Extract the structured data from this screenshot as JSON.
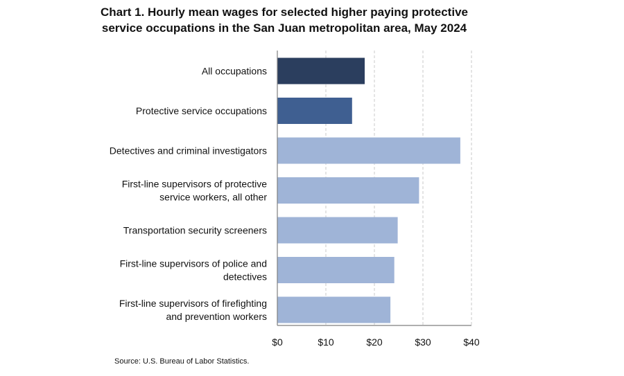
{
  "chart_data": {
    "type": "bar",
    "orientation": "horizontal",
    "title_lines": [
      "Chart 1. Hourly mean wages for selected higher paying protective",
      "service occupations in the San Juan metropolitan area, May 2024"
    ],
    "categories": [
      [
        "All occupations"
      ],
      [
        "Protective service occupations"
      ],
      [
        "Detectives and criminal investigators"
      ],
      [
        "First-line supervisors of protective",
        "service workers, all other"
      ],
      [
        "Transportation security screeners"
      ],
      [
        "First-line supervisors of police and",
        "detectives"
      ],
      [
        "First-line supervisors of firefighting",
        "and prevention workers"
      ]
    ],
    "values": [
      18.0,
      15.4,
      37.7,
      29.2,
      24.8,
      24.1,
      23.3
    ],
    "bar_colors": [
      "#2b3e5e",
      "#3f5f91",
      "#9fb4d7",
      "#9fb4d7",
      "#9fb4d7",
      "#9fb4d7",
      "#9fb4d7"
    ],
    "x_ticks": [
      0,
      10,
      20,
      30,
      40
    ],
    "x_tick_labels": [
      "$0",
      "$10",
      "$20",
      "$30",
      "$40"
    ],
    "xlim": [
      0,
      40
    ],
    "grid": "vertical dashed",
    "source": "Source: U.S. Bureau of Labor Statistics."
  }
}
